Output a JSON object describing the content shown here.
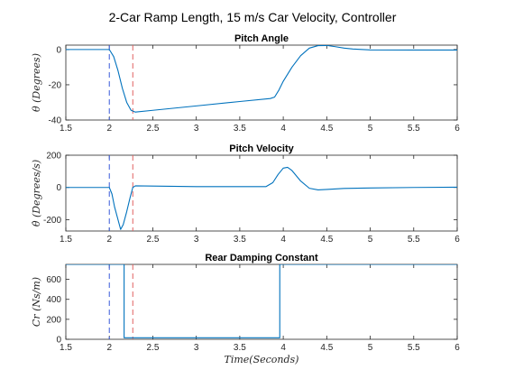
{
  "figure": {
    "suptitle": "2-Car Ramp Length,  15 m/s Car Velocity,  Controller",
    "xlabel": "Time(Seconds)"
  },
  "chart_data": [
    {
      "type": "line",
      "title": "Pitch Angle",
      "ylabel": "θ (Degrees)",
      "xlim": [
        1.5,
        6
      ],
      "ylim": [
        -40,
        2.5
      ],
      "xticks": [
        "1.5",
        "2",
        "2.5",
        "3",
        "3.5",
        "4",
        "4.5",
        "5",
        "5.5",
        "6"
      ],
      "yticks": [
        "0",
        "-20",
        "-40"
      ],
      "ytick_values": [
        0,
        -20,
        -40
      ],
      "series": [
        {
          "color": "#0072BD",
          "x": [
            1.5,
            2.0,
            2.05,
            2.1,
            2.15,
            2.2,
            2.25,
            2.3,
            2.5,
            3.0,
            3.5,
            3.85,
            3.9,
            3.95,
            4.0,
            4.1,
            4.2,
            4.3,
            4.4,
            4.5,
            4.6,
            4.7,
            4.8,
            5.0,
            5.5,
            6.0
          ],
          "y": [
            0,
            0,
            -4,
            -12,
            -22,
            -30,
            -34.5,
            -35.5,
            -34.5,
            -32,
            -29.5,
            -27.8,
            -27,
            -23,
            -18,
            -10,
            -3.5,
            0.8,
            2.2,
            2.3,
            1.6,
            0.8,
            0.3,
            -0.2,
            -0.3,
            -0.3
          ]
        }
      ],
      "vlines": [
        {
          "x": 2.0,
          "color": "#3a5bd9",
          "style": "dashed"
        },
        {
          "x": 2.27,
          "color": "#e06060",
          "style": "dashed"
        }
      ]
    },
    {
      "type": "line",
      "title": "Pitch Velocity",
      "ylabel": "θ̇ (Degrees/s)",
      "xlim": [
        1.5,
        6
      ],
      "ylim": [
        -270,
        200
      ],
      "xticks": [
        "1.5",
        "2",
        "2.5",
        "3",
        "3.5",
        "4",
        "4.5",
        "5",
        "5.5",
        "6"
      ],
      "yticks": [
        "200",
        "0",
        "-200"
      ],
      "ytick_values": [
        200,
        0,
        -200
      ],
      "series": [
        {
          "color": "#0072BD",
          "x": [
            1.5,
            2.0,
            2.03,
            2.06,
            2.1,
            2.13,
            2.16,
            2.2,
            2.24,
            2.27,
            2.3,
            3.0,
            3.8,
            3.88,
            3.94,
            4.0,
            4.05,
            4.1,
            4.2,
            4.3,
            4.4,
            4.5,
            4.7,
            5.0,
            5.5,
            6.0
          ],
          "y": [
            0,
            0,
            -40,
            -120,
            -200,
            -260,
            -230,
            -150,
            -60,
            0,
            10,
            5,
            5,
            30,
            80,
            120,
            125,
            105,
            40,
            -5,
            -15,
            -12,
            -6,
            -3,
            0,
            2
          ]
        }
      ],
      "vlines": [
        {
          "x": 2.0,
          "color": "#3a5bd9",
          "style": "dashed"
        },
        {
          "x": 2.27,
          "color": "#e06060",
          "style": "dashed"
        }
      ]
    },
    {
      "type": "line",
      "title": "Rear Damping Constant",
      "ylabel": "Cr (Ns/m)",
      "xlim": [
        1.5,
        6
      ],
      "ylim": [
        0,
        750
      ],
      "xticks": [
        "1.5",
        "2",
        "2.5",
        "3",
        "3.5",
        "4",
        "4.5",
        "5",
        "5.5",
        "6"
      ],
      "yticks": [
        "600",
        "400",
        "200",
        "0"
      ],
      "ytick_values": [
        600,
        400,
        200,
        0
      ],
      "series": [
        {
          "color": "#0072BD",
          "x": [
            1.5,
            2.17,
            2.17,
            3.96,
            3.96,
            6.0
          ],
          "y": [
            750,
            750,
            15,
            15,
            750,
            750
          ]
        }
      ],
      "vlines": [
        {
          "x": 2.0,
          "color": "#3a5bd9",
          "style": "dashed"
        },
        {
          "x": 2.27,
          "color": "#e06060",
          "style": "dashed"
        }
      ]
    }
  ]
}
